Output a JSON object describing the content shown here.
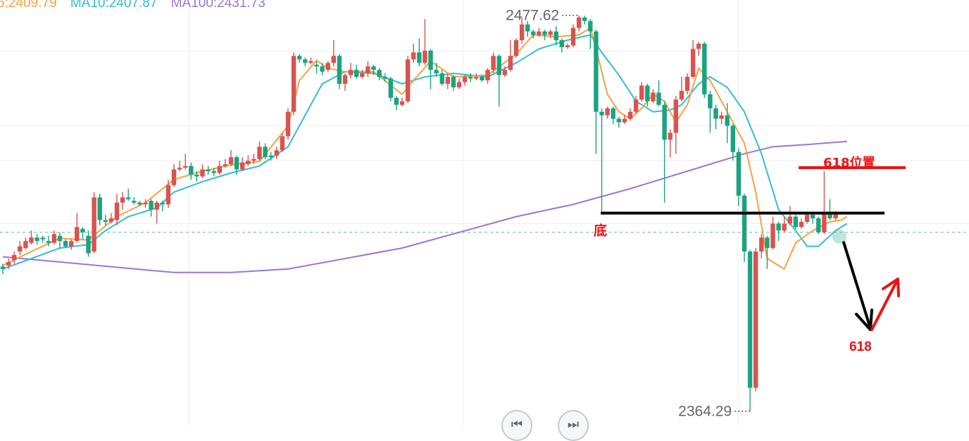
{
  "legend": {
    "ma5": "5:2409.79",
    "ma10": "MA10:2407.87",
    "ma100": "MA100:2431.73"
  },
  "colors": {
    "up": "#d9534f",
    "down": "#1aa37f",
    "ma5": "#f5a142",
    "ma10": "#33bcd6",
    "ma100": "#9a76d6",
    "annotation_red": "#ee1111",
    "annotation_black": "#000000",
    "grid": "#eeeeee",
    "price_line": "#5fb6a6"
  },
  "annotations": {
    "high_label": "2477.62",
    "low_label": "2364.29",
    "bottom_label": "底",
    "fib_level_label": "618位置",
    "target_label": "618"
  },
  "nav": {
    "prev_icon": "skip-back-icon",
    "next_icon": "skip-forward-icon"
  },
  "chart_data": {
    "type": "candlestick",
    "y_axis": {
      "min": 2360,
      "max": 2482
    },
    "support_level": 2421,
    "fib_618_level": 2434,
    "current_price": 2415.5,
    "high": 2477.62,
    "low": 2364.29,
    "candles": [
      [
        2405.7,
        2405.0,
        2406.5,
        2403.5
      ],
      [
        2406.0,
        2407.0,
        2408.0,
        2405.0
      ],
      [
        2407.5,
        2409.0,
        2410.0,
        2406.5
      ],
      [
        2410.0,
        2411.5,
        2413.0,
        2409.0
      ],
      [
        2411.0,
        2413.0,
        2414.0,
        2410.5
      ],
      [
        2412.5,
        2414.0,
        2416.0,
        2412.0
      ],
      [
        2414.0,
        2413.0,
        2415.0,
        2412.0
      ],
      [
        2414.0,
        2413.5,
        2414.5,
        2412.5
      ],
      [
        2413.0,
        2412.5,
        2414.5,
        2411.5
      ],
      [
        2412.5,
        2415.0,
        2416.0,
        2412.0
      ],
      [
        2414.5,
        2413.0,
        2415.5,
        2411.0
      ],
      [
        2413.0,
        2411.5,
        2413.5,
        2411.0
      ],
      [
        2411.5,
        2413.0,
        2413.5,
        2410.5
      ],
      [
        2413.0,
        2417.0,
        2421.0,
        2412.5
      ],
      [
        2416.5,
        2415.5,
        2417.0,
        2413.5
      ],
      [
        2414.5,
        2409.5,
        2416.0,
        2408.5
      ],
      [
        2410.0,
        2425.5,
        2427.0,
        2409.5
      ],
      [
        2425.5,
        2419.0,
        2426.5,
        2417.5
      ],
      [
        2419.0,
        2418.5,
        2420.5,
        2417.5
      ],
      [
        2418.5,
        2419.5,
        2421.0,
        2418.0
      ],
      [
        2419.0,
        2424.0,
        2426.5,
        2417.5
      ],
      [
        2424.0,
        2425.5,
        2427.0,
        2422.0
      ],
      [
        2425.5,
        2425.0,
        2428.0,
        2424.5
      ],
      [
        2424.5,
        2424.0,
        2425.5,
        2423.5
      ],
      [
        2424.0,
        2423.5,
        2424.5,
        2423.0
      ],
      [
        2423.5,
        2424.0,
        2425.0,
        2422.5
      ],
      [
        2424.5,
        2422.0,
        2425.0,
        2420.0
      ],
      [
        2422.0,
        2424.0,
        2424.5,
        2418.0
      ],
      [
        2424.0,
        2423.5,
        2424.5,
        2421.5
      ],
      [
        2423.5,
        2429.0,
        2430.5,
        2422.5
      ],
      [
        2429.0,
        2433.5,
        2435.0,
        2428.5
      ],
      [
        2433.5,
        2434.0,
        2436.0,
        2433.0
      ],
      [
        2434.0,
        2434.5,
        2438.0,
        2433.5
      ],
      [
        2434.5,
        2432.0,
        2435.5,
        2430.5
      ],
      [
        2432.0,
        2431.5,
        2433.0,
        2430.0
      ],
      [
        2431.5,
        2433.5,
        2435.0,
        2431.0
      ],
      [
        2433.5,
        2433.0,
        2434.5,
        2432.0
      ],
      [
        2433.0,
        2432.5,
        2434.0,
        2431.5
      ],
      [
        2432.5,
        2434.5,
        2436.0,
        2432.0
      ],
      [
        2434.5,
        2435.0,
        2436.5,
        2434.0
      ],
      [
        2435.0,
        2437.0,
        2439.0,
        2434.5
      ],
      [
        2437.0,
        2433.5,
        2437.5,
        2432.0
      ],
      [
        2433.5,
        2435.5,
        2437.0,
        2433.0
      ],
      [
        2435.0,
        2436.0,
        2437.5,
        2434.5
      ],
      [
        2436.0,
        2436.5,
        2438.0,
        2435.0
      ],
      [
        2436.5,
        2440.0,
        2441.5,
        2436.0
      ],
      [
        2440.0,
        2437.0,
        2441.0,
        2436.5
      ],
      [
        2437.5,
        2437.0,
        2438.5,
        2436.0
      ],
      [
        2437.5,
        2439.0,
        2440.0,
        2436.5
      ],
      [
        2439.0,
        2443.0,
        2444.0,
        2438.5
      ],
      [
        2443.0,
        2450.0,
        2451.0,
        2442.0
      ],
      [
        2450.0,
        2466.0,
        2467.0,
        2449.0
      ],
      [
        2466.0,
        2465.0,
        2466.5,
        2464.0
      ],
      [
        2465.0,
        2464.0,
        2465.5,
        2463.0
      ],
      [
        2464.0,
        2464.5,
        2465.5,
        2463.5
      ],
      [
        2463.5,
        2463.0,
        2464.5,
        2461.0
      ],
      [
        2463.0,
        2461.5,
        2464.0,
        2460.5
      ],
      [
        2462.0,
        2464.0,
        2464.5,
        2461.5
      ],
      [
        2464.0,
        2466.0,
        2470.5,
        2463.0
      ],
      [
        2466.0,
        2458.0,
        2466.5,
        2456.5
      ],
      [
        2458.0,
        2460.5,
        2461.0,
        2456.0
      ],
      [
        2460.5,
        2462.0,
        2464.0,
        2459.5
      ],
      [
        2462.0,
        2460.0,
        2463.5,
        2459.5
      ],
      [
        2460.0,
        2461.0,
        2462.0,
        2459.5
      ],
      [
        2461.0,
        2463.0,
        2464.5,
        2460.0
      ],
      [
        2463.0,
        2462.0,
        2463.5,
        2460.5
      ],
      [
        2462.0,
        2460.0,
        2462.5,
        2459.0
      ],
      [
        2460.0,
        2459.5,
        2461.0,
        2458.5
      ],
      [
        2459.5,
        2454.0,
        2460.0,
        2453.0
      ],
      [
        2454.0,
        2452.0,
        2454.5,
        2450.5
      ],
      [
        2452.0,
        2453.0,
        2454.0,
        2451.5
      ],
      [
        2453.0,
        2465.0,
        2466.0,
        2452.5
      ],
      [
        2465.0,
        2467.0,
        2469.5,
        2464.0
      ],
      [
        2467.0,
        2464.0,
        2471.0,
        2463.0
      ],
      [
        2464.0,
        2467.5,
        2476.5,
        2463.5
      ],
      [
        2467.5,
        2462.0,
        2468.0,
        2456.5
      ],
      [
        2462.0,
        2461.0,
        2464.0,
        2460.0
      ],
      [
        2461.0,
        2458.0,
        2462.0,
        2457.5
      ],
      [
        2458.0,
        2460.0,
        2461.0,
        2456.5
      ],
      [
        2460.0,
        2457.0,
        2460.5,
        2456.0
      ],
      [
        2457.0,
        2458.5,
        2459.5,
        2456.5
      ],
      [
        2458.5,
        2460.0,
        2460.5,
        2457.5
      ],
      [
        2460.0,
        2459.5,
        2461.0,
        2458.5
      ],
      [
        2459.5,
        2460.0,
        2461.0,
        2459.0
      ],
      [
        2460.0,
        2459.0,
        2460.5,
        2458.5
      ],
      [
        2459.0,
        2462.0,
        2462.5,
        2458.0
      ],
      [
        2462.0,
        2466.0,
        2467.0,
        2461.0
      ],
      [
        2466.0,
        2460.5,
        2466.5,
        2451.5
      ],
      [
        2460.5,
        2462.0,
        2463.0,
        2460.0
      ],
      [
        2462.0,
        2466.0,
        2470.5,
        2461.5
      ],
      [
        2466.0,
        2470.5,
        2471.0,
        2465.5
      ],
      [
        2470.5,
        2475.0,
        2477.0,
        2469.5
      ],
      [
        2475.0,
        2473.0,
        2476.0,
        2471.5
      ],
      [
        2473.0,
        2472.0,
        2473.5,
        2471.0
      ],
      [
        2472.0,
        2473.0,
        2474.0,
        2471.5
      ],
      [
        2473.0,
        2472.0,
        2473.5,
        2470.5
      ],
      [
        2472.0,
        2473.0,
        2473.5,
        2471.0
      ],
      [
        2473.0,
        2470.5,
        2474.5,
        2469.0
      ],
      [
        2470.5,
        2468.5,
        2471.0,
        2467.0
      ],
      [
        2468.5,
        2469.0,
        2469.5,
        2468.0
      ],
      [
        2469.0,
        2474.0,
        2475.0,
        2468.5
      ],
      [
        2474.0,
        2477.0,
        2477.62,
        2473.0
      ],
      [
        2477.0,
        2476.0,
        2477.5,
        2475.0
      ],
      [
        2476.0,
        2473.0,
        2476.5,
        2468.0
      ],
      [
        2473.0,
        2450.0,
        2473.5,
        2438.0
      ],
      [
        2450.0,
        2449.0,
        2451.0,
        2421.0
      ],
      [
        2449.0,
        2451.0,
        2451.5,
        2448.0
      ],
      [
        2451.0,
        2448.0,
        2451.5,
        2446.5
      ],
      [
        2448.0,
        2447.0,
        2448.5,
        2445.5
      ],
      [
        2447.0,
        2448.0,
        2449.0,
        2446.5
      ],
      [
        2448.0,
        2450.0,
        2451.0,
        2447.5
      ],
      [
        2450.0,
        2453.5,
        2454.5,
        2449.5
      ],
      [
        2453.5,
        2457.5,
        2458.5,
        2453.0
      ],
      [
        2457.5,
        2453.0,
        2458.0,
        2451.5
      ],
      [
        2453.0,
        2455.5,
        2456.5,
        2452.5
      ],
      [
        2455.5,
        2452.0,
        2459.0,
        2451.5
      ],
      [
        2452.0,
        2442.0,
        2453.0,
        2424.0
      ],
      [
        2442.0,
        2444.0,
        2445.0,
        2437.0
      ],
      [
        2444.0,
        2453.5,
        2454.5,
        2438.0
      ],
      [
        2453.5,
        2456.0,
        2460.0,
        2453.0
      ],
      [
        2456.0,
        2460.0,
        2461.0,
        2455.0
      ],
      [
        2460.0,
        2468.0,
        2470.5,
        2459.5
      ],
      [
        2468.0,
        2469.5,
        2470.0,
        2466.0
      ],
      [
        2469.5,
        2455.0,
        2470.0,
        2454.0
      ],
      [
        2455.0,
        2451.0,
        2456.0,
        2444.0
      ],
      [
        2451.0,
        2448.0,
        2452.0,
        2445.0
      ],
      [
        2448.0,
        2449.0,
        2450.0,
        2446.5
      ],
      [
        2449.0,
        2446.0,
        2452.5,
        2441.0
      ],
      [
        2446.0,
        2438.5,
        2446.5,
        2436.0
      ],
      [
        2438.5,
        2426.0,
        2439.5,
        2423.0
      ],
      [
        2426.0,
        2410.0,
        2426.5,
        2407.0
      ],
      [
        2410.0,
        2371.0,
        2410.5,
        2364.29
      ],
      [
        2371.0,
        2410.0,
        2411.0,
        2370.0
      ],
      [
        2410.0,
        2414.0,
        2415.0,
        2408.0
      ],
      [
        2414.0,
        2411.0,
        2414.5,
        2405.0
      ],
      [
        2411.0,
        2418.0,
        2420.0,
        2410.5
      ],
      [
        2418.0,
        2416.0,
        2418.5,
        2413.0
      ],
      [
        2416.0,
        2418.0,
        2420.0,
        2415.5
      ],
      [
        2418.0,
        2420.0,
        2423.0,
        2417.5
      ],
      [
        2420.0,
        2417.0,
        2420.5,
        2416.5
      ],
      [
        2417.0,
        2418.5,
        2419.5,
        2416.5
      ],
      [
        2418.5,
        2420.5,
        2421.5,
        2418.0
      ],
      [
        2420.5,
        2419.5,
        2421.0,
        2418.0
      ],
      [
        2419.5,
        2415.5,
        2420.0,
        2415.0
      ],
      [
        2415.5,
        2421.0,
        2433.0,
        2415.0
      ],
      [
        2421.0,
        2419.5,
        2425.0,
        2419.0
      ],
      [
        2419.5,
        2421.0,
        2421.5,
        2419.0
      ]
    ],
    "ma_lines": [
      {
        "name": "MA5",
        "values": [
          [
            0,
            2406.0
          ],
          [
            5,
            2410.0
          ],
          [
            10,
            2413.8
          ],
          [
            15,
            2413.3
          ],
          [
            20,
            2420.0
          ],
          [
            25,
            2424.0
          ],
          [
            30,
            2430.6
          ],
          [
            35,
            2433.0
          ],
          [
            40,
            2434.8
          ],
          [
            45,
            2435.8
          ],
          [
            50,
            2446.0
          ],
          [
            52,
            2459.0
          ],
          [
            55,
            2464.7
          ],
          [
            57,
            2462.5
          ],
          [
            60,
            2461.5
          ],
          [
            65,
            2461.5
          ],
          [
            70,
            2455.0
          ],
          [
            72,
            2459.0
          ],
          [
            75,
            2464.5
          ],
          [
            79,
            2460.0
          ],
          [
            85,
            2460.5
          ],
          [
            90,
            2466.5
          ],
          [
            93,
            2472.0
          ],
          [
            97,
            2471.5
          ],
          [
            101,
            2472.0
          ],
          [
            103,
            2474.0
          ],
          [
            104,
            2468.0
          ],
          [
            106,
            2455.0
          ],
          [
            108,
            2450.0
          ],
          [
            110,
            2448.0
          ],
          [
            112,
            2451.0
          ],
          [
            114,
            2455.0
          ],
          [
            116,
            2453.0
          ],
          [
            118,
            2447.0
          ],
          [
            120,
            2452.0
          ],
          [
            122,
            2462.5
          ],
          [
            124,
            2459.0
          ],
          [
            127,
            2450.0
          ],
          [
            130,
            2441.0
          ],
          [
            132,
            2427.0
          ],
          [
            134,
            2408.0
          ],
          [
            137,
            2405.0
          ],
          [
            139,
            2412.5
          ],
          [
            142,
            2416.0
          ],
          [
            145,
            2418.5
          ],
          [
            147,
            2419.0
          ],
          [
            148,
            2420.0
          ]
        ]
      },
      {
        "name": "MA10",
        "values": [
          [
            0,
            2405.0
          ],
          [
            5,
            2408.0
          ],
          [
            10,
            2411.0
          ],
          [
            15,
            2412.0
          ],
          [
            18,
            2416.0
          ],
          [
            22,
            2420.0
          ],
          [
            27,
            2422.5
          ],
          [
            30,
            2427.0
          ],
          [
            35,
            2430.0
          ],
          [
            40,
            2432.5
          ],
          [
            45,
            2434.5
          ],
          [
            50,
            2440.0
          ],
          [
            53,
            2449.0
          ],
          [
            56,
            2458.0
          ],
          [
            60,
            2461.5
          ],
          [
            65,
            2461.0
          ],
          [
            70,
            2458.0
          ],
          [
            74,
            2460.0
          ],
          [
            79,
            2461.0
          ],
          [
            85,
            2460.0
          ],
          [
            90,
            2464.0
          ],
          [
            94,
            2468.0
          ],
          [
            99,
            2470.5
          ],
          [
            103,
            2472.0
          ],
          [
            105,
            2467.0
          ],
          [
            108,
            2460.5
          ],
          [
            111,
            2453.0
          ],
          [
            114,
            2450.0
          ],
          [
            117,
            2450.5
          ],
          [
            119,
            2452.0
          ],
          [
            122,
            2458.0
          ],
          [
            124,
            2460.0
          ],
          [
            127,
            2457.0
          ],
          [
            130,
            2450.0
          ],
          [
            133,
            2438.0
          ],
          [
            136,
            2422.0
          ],
          [
            139,
            2416.0
          ],
          [
            141,
            2411.5
          ],
          [
            143,
            2411.5
          ],
          [
            146,
            2416.0
          ],
          [
            148,
            2418.0
          ]
        ]
      },
      {
        "name": "MA100",
        "values": [
          [
            0,
            2408.5
          ],
          [
            10,
            2407.0
          ],
          [
            20,
            2405.5
          ],
          [
            30,
            2404.0
          ],
          [
            40,
            2404.0
          ],
          [
            50,
            2405.0
          ],
          [
            60,
            2408.0
          ],
          [
            70,
            2411.0
          ],
          [
            80,
            2415.5
          ],
          [
            90,
            2420.0
          ],
          [
            100,
            2423.5
          ],
          [
            110,
            2428.0
          ],
          [
            120,
            2433.0
          ],
          [
            130,
            2438.0
          ],
          [
            135,
            2440.0
          ],
          [
            140,
            2440.5
          ],
          [
            148,
            2441.5
          ]
        ]
      }
    ]
  }
}
